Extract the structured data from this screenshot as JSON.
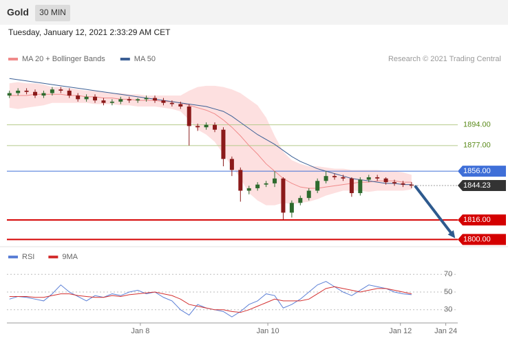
{
  "header": {
    "title": "Gold",
    "interval": "30 MIN",
    "datetime": "Tuesday, January 12, 2021 2:33:29 AM CET"
  },
  "chart_data": [
    {
      "type": "candlestick",
      "source": "Research © 2021 Trading Central",
      "xlim": [
        -0.3,
        52.4
      ],
      "ylim": [
        1796,
        1940
      ],
      "up_color": "#2e6b2e",
      "down_color": "#8b1a1a",
      "open": [
        1918,
        1920,
        1922,
        1921,
        1918,
        1920,
        1923,
        1922,
        1918,
        1915,
        1917,
        1914,
        1912,
        1913,
        1915,
        1914,
        1915,
        1916,
        1914,
        1912,
        1911,
        1909,
        1893,
        1892,
        1894,
        1890,
        1866,
        1857,
        1840,
        1842,
        1845,
        1846,
        1850,
        1822,
        1830,
        1834,
        1840,
        1848,
        1852,
        1851,
        1850,
        1838,
        1849,
        1851,
        1850,
        1847,
        1846,
        1845
      ],
      "high": [
        1922,
        1924,
        1924,
        1923,
        1922,
        1925,
        1925,
        1924,
        1920,
        1919,
        1919,
        1916,
        1915,
        1917,
        1917,
        1916,
        1918,
        1918,
        1916,
        1914,
        1913,
        1911,
        1895,
        1896,
        1896,
        1892,
        1868,
        1859,
        1844,
        1847,
        1848,
        1856,
        1851,
        1832,
        1836,
        1842,
        1850,
        1856,
        1854,
        1853,
        1851,
        1851,
        1853,
        1853,
        1851,
        1849,
        1848,
        1847
      ],
      "low": [
        1916,
        1918,
        1919,
        1916,
        1916,
        1918,
        1920,
        1916,
        1913,
        1913,
        1912,
        1910,
        1910,
        1911,
        1912,
        1912,
        1913,
        1912,
        1910,
        1909,
        1907,
        1877,
        1889,
        1890,
        1888,
        1860,
        1852,
        1831,
        1837,
        1840,
        1843,
        1843,
        1816,
        1818,
        1828,
        1832,
        1838,
        1846,
        1849,
        1848,
        1835,
        1836,
        1847,
        1848,
        1845,
        1844,
        1843,
        1842
      ],
      "close": [
        1920,
        1922,
        1921,
        1918,
        1920,
        1923,
        1922,
        1918,
        1915,
        1917,
        1914,
        1912,
        1913,
        1915,
        1914,
        1915,
        1916,
        1914,
        1912,
        1911,
        1909,
        1893,
        1892,
        1894,
        1890,
        1866,
        1857,
        1840,
        1842,
        1845,
        1846,
        1850,
        1822,
        1830,
        1834,
        1840,
        1848,
        1852,
        1851,
        1850,
        1838,
        1849,
        1851,
        1850,
        1847,
        1846,
        1845,
        1844
      ],
      "series": [
        {
          "name": "MA 20 + Bollinger Bands",
          "color": "#f08a8a",
          "band_color": "#fde0e0",
          "values": [
            1918,
            1918,
            1918,
            1919,
            1919,
            1919,
            1919,
            1918,
            1918,
            1917,
            1917,
            1916,
            1916,
            1915,
            1915,
            1914,
            1914,
            1914,
            1913,
            1913,
            1912,
            1910,
            1908,
            1906,
            1903,
            1898,
            1892,
            1885,
            1877,
            1870,
            1862,
            1856,
            1850,
            1846,
            1843,
            1842,
            1842,
            1843,
            1844,
            1845,
            1846,
            1847,
            1847,
            1848,
            1848,
            1848,
            1847,
            1847
          ],
          "upper": [
            1928,
            1929,
            1928,
            1928,
            1927,
            1925,
            1925,
            1924,
            1923,
            1922,
            1922,
            1921,
            1920,
            1920,
            1919,
            1919,
            1918,
            1918,
            1918,
            1918,
            1918,
            1922,
            1925,
            1926,
            1926,
            1925,
            1923,
            1920,
            1915,
            1910,
            1900,
            1885,
            1872,
            1865,
            1862,
            1860,
            1860,
            1859,
            1858,
            1858,
            1857,
            1857,
            1857,
            1857,
            1856,
            1856,
            1855,
            1853
          ],
          "lower": [
            1908,
            1907,
            1908,
            1909,
            1910,
            1912,
            1912,
            1912,
            1912,
            1912,
            1911,
            1911,
            1911,
            1910,
            1910,
            1909,
            1909,
            1909,
            1908,
            1907,
            1905,
            1898,
            1890,
            1886,
            1880,
            1870,
            1860,
            1850,
            1838,
            1832,
            1828,
            1828,
            1830,
            1829,
            1830,
            1831,
            1833,
            1836,
            1838,
            1840,
            1840,
            1840,
            1839,
            1840,
            1840,
            1840,
            1840,
            1841
          ]
        },
        {
          "name": "MA 50",
          "color": "#3b5f95",
          "values": [
            1932,
            1931,
            1930,
            1929,
            1928,
            1927,
            1926,
            1925,
            1924,
            1923,
            1922,
            1921,
            1920,
            1919,
            1918,
            1917,
            1916,
            1915,
            1914,
            1913,
            1912,
            1911,
            1910,
            1909,
            1907,
            1905,
            1901,
            1896,
            1891,
            1886,
            1882,
            1878,
            1873,
            1868,
            1864,
            1861,
            1858,
            1856,
            1854,
            1852,
            1850,
            1849,
            1848,
            1847,
            1846,
            1846,
            1845,
            1845
          ]
        }
      ],
      "levels": [
        {
          "value": 1894,
          "label": "1894.00",
          "color": "#b5c98a",
          "text_color": "#5a8a1a",
          "style": "text"
        },
        {
          "value": 1877,
          "label": "1877.00",
          "color": "#b5c98a",
          "text_color": "#5a8a1a",
          "style": "text"
        },
        {
          "value": 1856,
          "label": "1856.00",
          "color": "#3f6fd8",
          "text_color": "#ffffff",
          "style": "box"
        },
        {
          "value": 1816,
          "label": "1816.00",
          "color": "#d40000",
          "text_color": "#ffffff",
          "style": "box"
        },
        {
          "value": 1800,
          "label": "1800.00",
          "color": "#d40000",
          "text_color": "#ffffff",
          "style": "box"
        }
      ],
      "last_price": {
        "value": 1844.23,
        "label": "1844.23",
        "color": "#333333"
      },
      "arrow": {
        "color": "#2e5a8e",
        "from": [
          47.4,
          1844
        ],
        "to": [
          52.1,
          1801
        ]
      }
    },
    {
      "type": "line",
      "xlim": [
        -0.3,
        52.4
      ],
      "ylim": [
        19,
        81
      ],
      "yticks": [
        30,
        50,
        70
      ],
      "grid": true,
      "xticks": [
        {
          "value": 15.3,
          "label": "Jan 8"
        },
        {
          "value": 30.2,
          "label": "Jan 10"
        },
        {
          "value": 45.7,
          "label": "Jan 12"
        },
        {
          "value": 51.0,
          "label": "Jan 24"
        }
      ],
      "series": [
        {
          "name": "RSI",
          "color": "#5b7fd6",
          "values": [
            42,
            45,
            44,
            42,
            40,
            48,
            58,
            50,
            45,
            40,
            46,
            44,
            48,
            46,
            50,
            52,
            48,
            50,
            44,
            40,
            30,
            24,
            36,
            32,
            30,
            28,
            22,
            28,
            36,
            40,
            48,
            46,
            32,
            36,
            42,
            50,
            58,
            62,
            56,
            50,
            46,
            52,
            58,
            56,
            54,
            50,
            48,
            47
          ]
        },
        {
          "name": "9MA",
          "color": "#d32f2f",
          "values": [
            45,
            45,
            45,
            44,
            44,
            46,
            48,
            48,
            46,
            45,
            44,
            44,
            46,
            45,
            47,
            48,
            49,
            50,
            48,
            46,
            42,
            36,
            34,
            32,
            30,
            30,
            28,
            27,
            30,
            34,
            38,
            42,
            40,
            40,
            40,
            42,
            48,
            54,
            56,
            54,
            52,
            50,
            52,
            54,
            54,
            52,
            50,
            48
          ]
        }
      ]
    }
  ]
}
